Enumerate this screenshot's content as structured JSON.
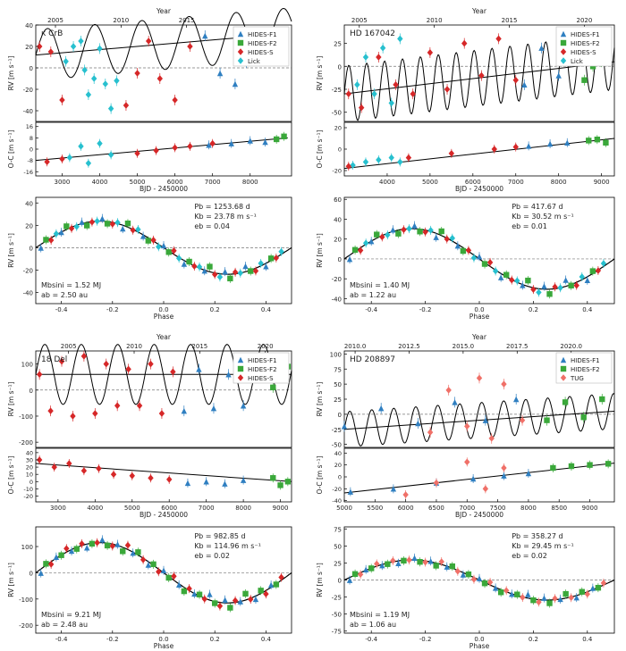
{
  "figure": {
    "description_free": true
  },
  "colors": {
    "HIDES-F1": "#2f7fc1",
    "HIDES-F2": "#3aa83a",
    "HIDES-S": "#d62728",
    "Lick": "#27c0cf",
    "TUG": "#f07068",
    "model": "#000000",
    "trend": "#000000",
    "zero": "#777777"
  },
  "labels": {
    "year": "Year",
    "bjd": "BJD - 2450000",
    "phase": "Phase",
    "rv": "RV [m s⁻¹]",
    "oc": "O-C [m s⁻¹]"
  },
  "chart_data": [
    {
      "type": "scatter",
      "star": "κ CrB",
      "legend": [
        "HIDES-F1",
        "HIDES-F2",
        "HIDES-S",
        "Lick"
      ],
      "legend_position": "top-right",
      "rv": {
        "ylim": [
          -50,
          40
        ],
        "yticks": [
          "40",
          "20",
          "0",
          "-20",
          "-40"
        ],
        "series": [
          {
            "name": "Lick",
            "x": [
              3100,
              3300,
              3500,
              3600,
              3700,
              3850,
              4000,
              4150,
              4300,
              4450
            ],
            "y": [
              6,
              20,
              25,
              -2,
              -25,
              -10,
              18,
              -15,
              -38,
              -12
            ]
          },
          {
            "name": "HIDES-S",
            "x": [
              2400,
              2700,
              3000,
              4700,
              5000,
              5300,
              5600,
              6000,
              6400
            ],
            "y": [
              20,
              15,
              -30,
              -35,
              -5,
              25,
              -10,
              -30,
              20
            ]
          },
          {
            "name": "HIDES-F1",
            "x": [
              6800,
              7200,
              7600,
              7900,
              8200
            ],
            "y": [
              30,
              -5,
              -15,
              5,
              22
            ]
          },
          {
            "name": "HIDES-F2",
            "x": [
              8600,
              8800
            ],
            "y": [
              20,
              25
            ]
          }
        ],
        "trend": {
          "x": [
            2300,
            9000
          ],
          "y": [
            12,
            32
          ]
        },
        "model": {
          "period": 1253.68,
          "k": 23.78
        }
      },
      "top_axis": {
        "xlim": [
          2003.5,
          2023
        ],
        "ticks": [
          2005,
          2010,
          2015
        ]
      },
      "oc": {
        "ylim": [
          -19,
          19
        ],
        "yticks": [
          "16",
          "8",
          "0",
          "-8",
          "-16"
        ],
        "trend": {
          "x": [
            2300,
            9000
          ],
          "y": [
            -8,
            8
          ]
        },
        "series": [
          {
            "name": "Lick",
            "x": [
              3200,
              3500,
              3700,
              4000,
              4300
            ],
            "y": [
              -6,
              2,
              -10,
              4,
              -4
            ]
          },
          {
            "name": "HIDES-S",
            "x": [
              2600,
              3000,
              5000,
              5500,
              6000,
              6400,
              7000
            ],
            "y": [
              -9,
              -7,
              -3,
              -1,
              1,
              2,
              4
            ]
          },
          {
            "name": "HIDES-F1",
            "x": [
              6900,
              7500,
              8000,
              8400
            ],
            "y": [
              3,
              4,
              6,
              5
            ]
          },
          {
            "name": "HIDES-F2",
            "x": [
              8700,
              8900
            ],
            "y": [
              7,
              9
            ]
          }
        ]
      },
      "bjd_axis": {
        "xlim": [
          2300,
          9100
        ],
        "ticks": [
          3000,
          4000,
          5000,
          6000,
          7000,
          8000
        ]
      },
      "phase": {
        "ylim": [
          -50,
          45
        ],
        "yticks": [
          "40",
          "20",
          "0",
          "-20",
          "-40"
        ],
        "xticks": [
          "-0.4",
          "-0.2",
          "0.0",
          "0.2",
          "0.4"
        ],
        "k": 23.78,
        "params": [
          "Pb = 1253.68 d",
          "Kb = 23.78 m s⁻¹",
          "eb = 0.04"
        ],
        "mass": [
          "Mbsini = 1.52 MJ",
          "ab = 2.50 au"
        ]
      }
    },
    {
      "type": "scatter",
      "star": "HD 167042",
      "legend": [
        "HIDES-F1",
        "HIDES-F2",
        "HIDES-S",
        "Lick"
      ],
      "legend_position": "top-right",
      "rv": {
        "ylim": [
          -60,
          45
        ],
        "yticks": [
          "25",
          "0",
          "-25",
          "-50"
        ],
        "series": [
          {
            "name": "Lick",
            "x": [
              3300,
              3500,
              3700,
              3900,
              4100,
              4300
            ],
            "y": [
              -20,
              10,
              -30,
              20,
              -40,
              30
            ]
          },
          {
            "name": "HIDES-S",
            "x": [
              3100,
              3400,
              3800,
              4200,
              4600,
              5000,
              5400,
              5800,
              6200,
              6600,
              7000
            ],
            "y": [
              -30,
              -45,
              10,
              -20,
              -30,
              15,
              -25,
              25,
              -10,
              30,
              -15
            ]
          },
          {
            "name": "HIDES-F1",
            "x": [
              7200,
              7600,
              8000,
              8400
            ],
            "y": [
              -20,
              20,
              -10,
              30
            ]
          },
          {
            "name": "HIDES-F2",
            "x": [
              8600,
              8800,
              9000
            ],
            "y": [
              -15,
              0,
              5
            ]
          }
        ],
        "trend": {
          "x": [
            3000,
            9300
          ],
          "y": [
            -30,
            5
          ]
        },
        "model": {
          "period": 417.67,
          "k": 30.52
        }
      },
      "top_axis": {
        "xlim": [
          2004,
          2022
        ],
        "ticks": [
          2005,
          2010,
          2015,
          2020
        ]
      },
      "oc": {
        "ylim": [
          -25,
          25
        ],
        "yticks": [
          "20",
          "0",
          "-20"
        ],
        "trend": {
          "x": [
            3000,
            9300
          ],
          "y": [
            -18,
            10
          ]
        },
        "series": [
          {
            "name": "Lick",
            "x": [
              3200,
              3500,
              3800,
              4100,
              4300
            ],
            "y": [
              -15,
              -12,
              -10,
              -8,
              -12
            ]
          },
          {
            "name": "HIDES-S",
            "x": [
              3100,
              4500,
              5500,
              6500,
              7000
            ],
            "y": [
              -16,
              -8,
              -4,
              0,
              2
            ]
          },
          {
            "name": "HIDES-F1",
            "x": [
              7300,
              7800,
              8200
            ],
            "y": [
              3,
              5,
              6
            ]
          },
          {
            "name": "HIDES-F2",
            "x": [
              8700,
              8900,
              9100
            ],
            "y": [
              8,
              9,
              6
            ]
          }
        ]
      },
      "bjd_axis": {
        "xlim": [
          3000,
          9300
        ],
        "ticks": [
          4000,
          5000,
          6000,
          7000,
          8000,
          9000
        ]
      },
      "phase": {
        "ylim": [
          -45,
          62
        ],
        "yticks": [
          "60",
          "40",
          "20",
          "0",
          "-20",
          "-40"
        ],
        "xticks": [
          "-0.4",
          "-0.2",
          "0.0",
          "0.2",
          "0.4"
        ],
        "k": 30.52,
        "params": [
          "Pb = 417.67 d",
          "Kb = 30.52 m s⁻¹",
          "eb = 0.01"
        ],
        "mass": [
          "Mbsini = 1.40 MJ",
          "ab = 1.22 au"
        ]
      }
    },
    {
      "type": "scatter",
      "star": "18 Del",
      "legend": [
        "HIDES-F1",
        "HIDES-F2",
        "HIDES-S"
      ],
      "legend_position": "top-right",
      "rv": {
        "ylim": [
          -220,
          150
        ],
        "yticks": [
          "100",
          "0",
          "-100",
          "-200"
        ],
        "series": [
          {
            "name": "HIDES-S",
            "x": [
              2500,
              2800,
              3100,
              3400,
              3700,
              4000,
              4300,
              4600,
              4900,
              5200,
              5500,
              5800,
              6100
            ],
            "y": [
              60,
              -80,
              110,
              -100,
              130,
              -90,
              100,
              -60,
              80,
              -60,
              100,
              -90,
              70
            ]
          },
          {
            "name": "HIDES-F1",
            "x": [
              6400,
              6800,
              7200,
              7600,
              8000,
              8400
            ],
            "y": [
              -80,
              80,
              -70,
              60,
              -60,
              50
            ]
          },
          {
            "name": "HIDES-F2",
            "x": [
              8800,
              9000,
              9200
            ],
            "y": [
              10,
              60,
              90
            ]
          }
        ],
        "trend": {
          "x": [
            2400,
            9300
          ],
          "y": [
            60,
            60
          ]
        },
        "model": {
          "period": 982.85,
          "k": 114.96
        }
      },
      "top_axis": {
        "xlim": [
          2002.5,
          2022
        ],
        "ticks": [
          2005,
          2010,
          2015,
          2020
        ]
      },
      "oc": {
        "ylim": [
          -28,
          46
        ],
        "yticks": [
          "40",
          "30",
          "20",
          "10",
          "0",
          "-10",
          "-20"
        ],
        "trend": {
          "x": [
            2400,
            9300
          ],
          "y": [
            25,
            0
          ]
        },
        "series": [
          {
            "name": "HIDES-S",
            "x": [
              2500,
              2900,
              3300,
              3700,
              4100,
              4500,
              5000,
              5500,
              6000
            ],
            "y": [
              30,
              20,
              25,
              15,
              18,
              10,
              8,
              5,
              3
            ]
          },
          {
            "name": "HIDES-F1",
            "x": [
              6500,
              7000,
              7500,
              8000
            ],
            "y": [
              -2,
              0,
              -3,
              2
            ]
          },
          {
            "name": "HIDES-F2",
            "x": [
              8800,
              9000,
              9200
            ],
            "y": [
              5,
              -5,
              0
            ]
          }
        ]
      },
      "bjd_axis": {
        "xlim": [
          2400,
          9300
        ],
        "ticks": [
          3000,
          4000,
          5000,
          6000,
          7000,
          8000,
          9000
        ]
      },
      "phase": {
        "ylim": [
          -230,
          175
        ],
        "yticks": [
          "100",
          "0",
          "-100",
          "-200"
        ],
        "xticks": [
          "-0.4",
          "-0.2",
          "0.0",
          "0.2",
          "0.4"
        ],
        "k": 114.96,
        "params": [
          "Pb = 982.85 d",
          "Kb = 114.96 m s⁻¹",
          "eb = 0.02"
        ],
        "mass": [
          "Mbsini = 9.21 MJ",
          "ab = 2.48 au"
        ]
      }
    },
    {
      "type": "scatter",
      "star": "HD 208897",
      "legend": [
        "HIDES-F1",
        "HIDES-F2",
        "TUG"
      ],
      "legend_position": "top-right",
      "rv": {
        "ylim": [
          -55,
          105
        ],
        "yticks": [
          "100",
          "75",
          "50",
          "25",
          "0",
          "-25",
          "-50"
        ],
        "series": [
          {
            "name": "HIDES-F1",
            "x": [
              5000,
              5600,
              6200,
              6800,
              7300,
              7800
            ],
            "y": [
              -20,
              10,
              -15,
              20,
              -10,
              25
            ]
          },
          {
            "name": "TUG",
            "x": [
              6400,
              6700,
              7000,
              7200,
              7400,
              7600,
              7900
            ],
            "y": [
              -30,
              40,
              -20,
              60,
              -40,
              50,
              -10
            ]
          },
          {
            "name": "HIDES-F2",
            "x": [
              8300,
              8600,
              8900,
              9200
            ],
            "y": [
              -10,
              20,
              -5,
              25
            ]
          }
        ],
        "trend": {
          "x": [
            5000,
            9400
          ],
          "y": [
            -25,
            5
          ]
        },
        "model": {
          "period": 358.27,
          "k": 29.45
        }
      },
      "top_axis": {
        "xlim": [
          2009.5,
          2022
        ],
        "ticks": [
          2010.0,
          2012.5,
          2015.0,
          2017.5,
          2020.0
        ],
        "labels": [
          "2010.0",
          "2012.5",
          "2015.0",
          "2017.5",
          "2020.0"
        ]
      },
      "oc": {
        "ylim": [
          -42,
          48
        ],
        "yticks": [
          "40",
          "20",
          "0",
          "-20",
          "-40"
        ],
        "trend": {
          "x": [
            5000,
            9400
          ],
          "y": [
            -27,
            23
          ]
        },
        "series": [
          {
            "name": "HIDES-F1",
            "x": [
              5100,
              5800,
              6500,
              7100,
              7600,
              8000
            ],
            "y": [
              -25,
              -20,
              -10,
              -3,
              2,
              6
            ]
          },
          {
            "name": "TUG",
            "x": [
              6000,
              6500,
              7000,
              7300,
              7600
            ],
            "y": [
              -30,
              -10,
              25,
              -20,
              15
            ]
          },
          {
            "name": "HIDES-F2",
            "x": [
              8400,
              8700,
              9000,
              9300
            ],
            "y": [
              15,
              18,
              20,
              22
            ]
          }
        ]
      },
      "bjd_axis": {
        "xlim": [
          5000,
          9400
        ],
        "ticks": [
          5000,
          5500,
          6000,
          6500,
          7000,
          7500,
          8000,
          8500,
          9000
        ]
      },
      "phase": {
        "ylim": [
          -78,
          78
        ],
        "yticks": [
          "75",
          "50",
          "25",
          "0",
          "-25",
          "-50",
          "-75"
        ],
        "xticks": [
          "-0.4",
          "-0.2",
          "0.0",
          "0.2",
          "0.4"
        ],
        "k": 29.45,
        "params": [
          "Pb = 358.27 d",
          "Kb = 29.45 m s⁻¹",
          "eb = 0.02"
        ],
        "mass": [
          "Mbsini = 1.19 MJ",
          "ab = 1.06 au"
        ]
      }
    }
  ]
}
